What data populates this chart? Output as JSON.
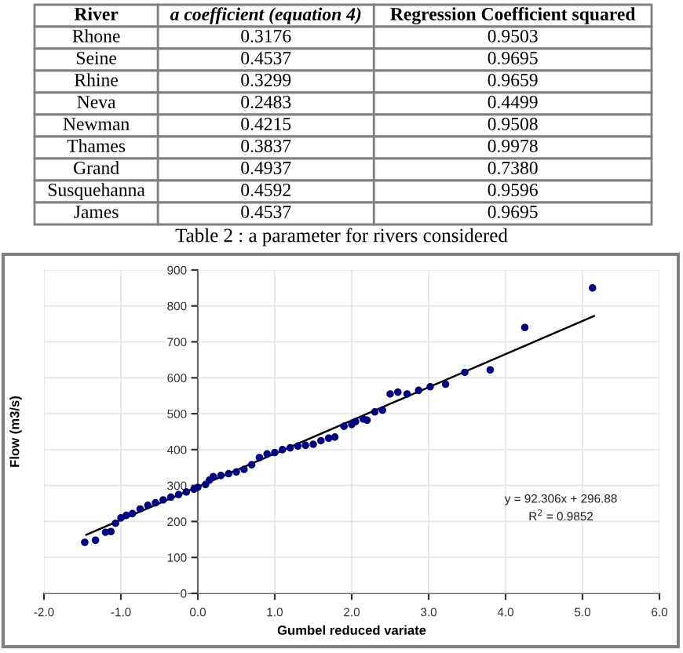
{
  "chart_data": [
    {
      "type": "other",
      "title": "Table 2 : a parameter for rivers considered",
      "annotations": [
        "River",
        "a coefficient (equation 4)",
        "Regression Coefficient squared",
        "Rhone",
        "0.3176",
        "0.9503",
        "Seine",
        "0.4537",
        "0.9695",
        "Rhine",
        "0.3299",
        "0.9659",
        "Neva",
        "0.2483",
        "0.4499",
        "Newman",
        "0.4215",
        "0.9508",
        "Thames",
        "0.3837",
        "0.9978",
        "Grand",
        "0.4937",
        "0.7380",
        "Susquehanna",
        "0.4592",
        "0.9596",
        "James",
        "0.4537",
        "0.9695"
      ]
    },
    {
      "type": "scatter",
      "xlabel": "Gumbel reduced variate",
      "ylabel": "Flow (m3/s)",
      "xlim": [
        -2,
        6
      ],
      "ylim": [
        0,
        900
      ],
      "xticks": [
        {
          "value": -2,
          "label": "-2.0"
        },
        {
          "value": -1,
          "label": "-1.0"
        },
        {
          "value": 0,
          "label": "0.0"
        },
        {
          "value": 1,
          "label": "1.0"
        },
        {
          "value": 2,
          "label": "2.0"
        },
        {
          "value": 3,
          "label": "3.0"
        },
        {
          "value": 4,
          "label": "4.0"
        },
        {
          "value": 5,
          "label": "5.0"
        },
        {
          "value": 6,
          "label": "6.0"
        }
      ],
      "yticks": [
        0,
        100,
        200,
        300,
        400,
        500,
        600,
        700,
        800,
        900
      ],
      "grid": true,
      "series": [
        {
          "type": "scatter",
          "marker": "circle",
          "color": "#00007f",
          "x": [
            -1.47,
            -1.33,
            -1.2,
            -1.13,
            -1.07,
            -1.0,
            -0.93,
            -0.85,
            -0.75,
            -0.65,
            -0.55,
            -0.45,
            -0.35,
            -0.25,
            -0.15,
            -0.05,
            0.0,
            0.1,
            0.15,
            0.2,
            0.3,
            0.4,
            0.5,
            0.6,
            0.7,
            0.8,
            0.9,
            1.0,
            1.1,
            1.2,
            1.3,
            1.4,
            1.5,
            1.6,
            1.7,
            1.78,
            1.9,
            2.0,
            2.05,
            2.15,
            2.2,
            2.3,
            2.4,
            2.5,
            2.6,
            2.72,
            2.87,
            3.02,
            3.22,
            3.47,
            3.8,
            4.25,
            5.13
          ],
          "values": [
            142,
            148,
            170,
            172,
            195,
            210,
            217,
            222,
            235,
            245,
            252,
            260,
            268,
            275,
            282,
            290,
            295,
            303,
            315,
            325,
            328,
            333,
            338,
            345,
            358,
            378,
            388,
            392,
            400,
            405,
            410,
            412,
            415,
            425,
            432,
            435,
            465,
            470,
            478,
            485,
            482,
            505,
            510,
            555,
            560,
            555,
            565,
            575,
            582,
            615,
            622,
            740,
            850
          ]
        },
        {
          "type": "line",
          "marker": "none",
          "color": "#000000",
          "x": [
            -1.45,
            5.15
          ],
          "values": [
            163,
            772
          ]
        }
      ],
      "annotations": [
        "y = 92.306x + 296.88",
        "R$^{2}$ = 0.9852"
      ]
    }
  ]
}
